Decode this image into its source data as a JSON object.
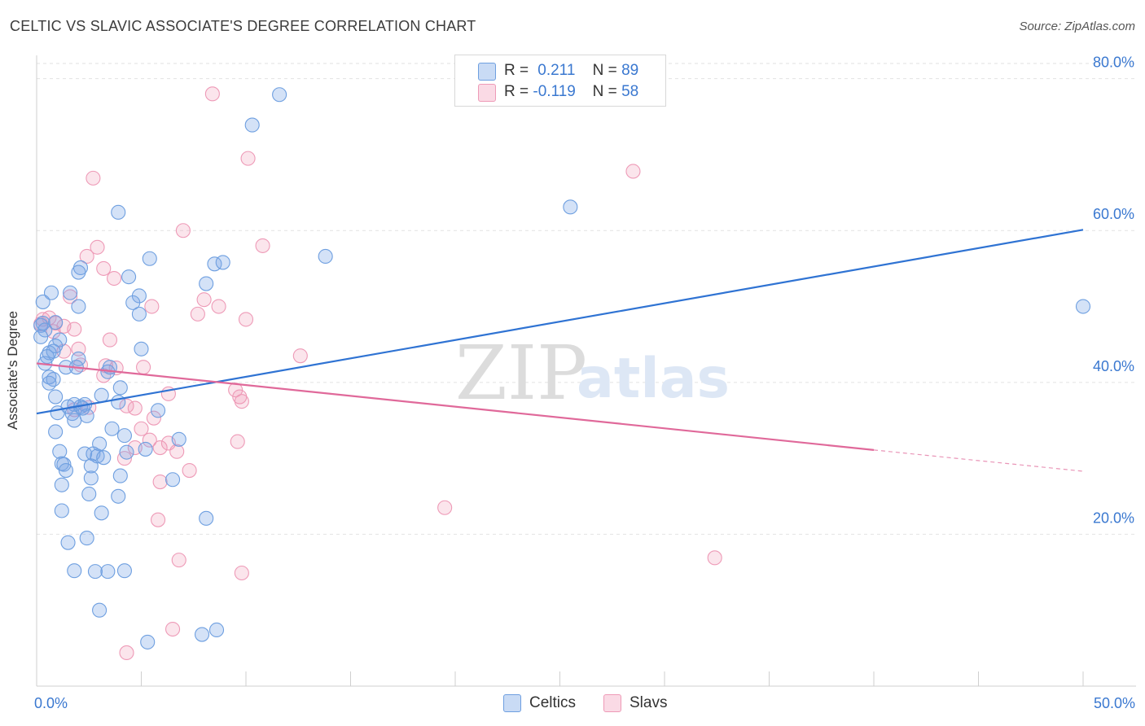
{
  "title": "CELTIC VS SLAVIC ASSOCIATE'S DEGREE CORRELATION CHART",
  "source": "Source: ZipAtlas.com",
  "watermark": {
    "zip": "ZIP",
    "atlas": "atlas"
  },
  "colors": {
    "celtic_fill": "rgba(120,165,230,0.32)",
    "celtic_stroke": "#6e9fe0",
    "celtic_line": "#2f73d3",
    "slav_fill": "rgba(240,150,180,0.25)",
    "slav_stroke": "#ee9ab7",
    "slav_line": "#e0699a",
    "axis_label": "#3a78d0",
    "grid": "#e2e2e2"
  },
  "legend": {
    "celtic": {
      "r_label": "R =",
      "r_value": "0.211",
      "n_label": "N =",
      "n_value": "89"
    },
    "slav": {
      "r_label": "R =",
      "r_value": "-0.119",
      "n_label": "N =",
      "n_value": "58"
    }
  },
  "bottom_legend": {
    "celtic": "Celtics",
    "slav": "Slavs"
  },
  "chart_data": {
    "type": "scatter",
    "title": "CELTIC VS SLAVIC ASSOCIATE'S DEGREE CORRELATION CHART",
    "xlabel": "",
    "ylabel": "Associate's Degree",
    "xlim": [
      0,
      50
    ],
    "ylim": [
      0,
      82
    ],
    "x_tick_labels": [
      "0.0%",
      "50.0%"
    ],
    "y_ticks": [
      20,
      40,
      60,
      80
    ],
    "y_tick_labels": [
      "20.0%",
      "40.0%",
      "60.0%",
      "80.0%"
    ],
    "grid": true,
    "series": [
      {
        "name": "Celtics",
        "trend": {
          "x0": 0,
          "y0": 35.9,
          "x1": 50,
          "y1": 60.1
        },
        "points": [
          [
            11.6,
            77.9
          ],
          [
            10.3,
            73.9
          ],
          [
            25.5,
            63.1
          ],
          [
            3.9,
            62.4
          ],
          [
            13.8,
            56.6
          ],
          [
            5.4,
            56.3
          ],
          [
            8.5,
            55.6
          ],
          [
            8.9,
            55.8
          ],
          [
            2.1,
            55.1
          ],
          [
            2.0,
            54.5
          ],
          [
            4.4,
            53.9
          ],
          [
            8.1,
            53.0
          ],
          [
            1.6,
            51.8
          ],
          [
            4.9,
            51.4
          ],
          [
            0.3,
            50.6
          ],
          [
            4.6,
            50.5
          ],
          [
            2.0,
            50.0
          ],
          [
            50.0,
            50.0
          ],
          [
            4.9,
            49.0
          ],
          [
            0.3,
            47.8
          ],
          [
            0.2,
            47.5
          ],
          [
            0.9,
            47.9
          ],
          [
            0.4,
            46.9
          ],
          [
            0.2,
            46.0
          ],
          [
            1.1,
            45.6
          ],
          [
            0.9,
            44.8
          ],
          [
            5.0,
            44.4
          ],
          [
            0.6,
            43.9
          ],
          [
            0.8,
            44.1
          ],
          [
            0.5,
            43.4
          ],
          [
            2.0,
            43.1
          ],
          [
            0.4,
            42.5
          ],
          [
            1.4,
            42.0
          ],
          [
            1.9,
            42.0
          ],
          [
            3.5,
            42.0
          ],
          [
            3.4,
            41.4
          ],
          [
            0.6,
            40.7
          ],
          [
            0.8,
            40.4
          ],
          [
            0.6,
            39.9
          ],
          [
            4.0,
            39.3
          ],
          [
            3.1,
            38.3
          ],
          [
            0.9,
            38.1
          ],
          [
            1.5,
            36.8
          ],
          [
            1.8,
            37.1
          ],
          [
            2.3,
            37.1
          ],
          [
            2.1,
            36.8
          ],
          [
            1.7,
            35.9
          ],
          [
            2.4,
            35.6
          ],
          [
            1.8,
            35.0
          ],
          [
            0.9,
            33.5
          ],
          [
            6.8,
            32.5
          ],
          [
            3.0,
            31.9
          ],
          [
            1.1,
            30.9
          ],
          [
            2.3,
            30.6
          ],
          [
            2.7,
            30.6
          ],
          [
            5.2,
            31.2
          ],
          [
            4.3,
            30.8
          ],
          [
            2.9,
            30.3
          ],
          [
            3.2,
            30.1
          ],
          [
            1.2,
            29.3
          ],
          [
            1.3,
            29.2
          ],
          [
            2.6,
            29.0
          ],
          [
            1.4,
            28.4
          ],
          [
            4.0,
            27.7
          ],
          [
            2.6,
            27.4
          ],
          [
            6.5,
            27.2
          ],
          [
            1.2,
            26.5
          ],
          [
            2.5,
            25.3
          ],
          [
            3.9,
            25.0
          ],
          [
            3.1,
            22.8
          ],
          [
            1.2,
            23.1
          ],
          [
            8.1,
            22.1
          ],
          [
            2.4,
            19.5
          ],
          [
            1.5,
            18.9
          ],
          [
            1.8,
            15.2
          ],
          [
            2.8,
            15.1
          ],
          [
            3.4,
            15.1
          ],
          [
            4.2,
            15.2
          ],
          [
            3.0,
            10.0
          ],
          [
            5.3,
            5.8
          ],
          [
            7.9,
            6.8
          ],
          [
            8.6,
            7.4
          ],
          [
            0.7,
            51.8
          ],
          [
            1.0,
            36.0
          ],
          [
            2.2,
            36.6
          ],
          [
            3.9,
            37.4
          ],
          [
            5.8,
            36.3
          ],
          [
            4.2,
            33.0
          ],
          [
            3.6,
            33.9
          ]
        ]
      },
      {
        "name": "Slavs",
        "trend": {
          "x0": 0,
          "y0": 42.5,
          "x1": 40,
          "y1": 31.1,
          "dash_to_x": 50,
          "dash_to_y": 28.3
        },
        "points": [
          [
            8.4,
            78.0
          ],
          [
            10.1,
            69.5
          ],
          [
            28.5,
            67.8
          ],
          [
            2.7,
            66.9
          ],
          [
            7.0,
            60.0
          ],
          [
            10.8,
            58.0
          ],
          [
            2.9,
            57.8
          ],
          [
            2.4,
            56.6
          ],
          [
            3.2,
            55.0
          ],
          [
            3.7,
            53.7
          ],
          [
            1.6,
            51.3
          ],
          [
            8.0,
            50.9
          ],
          [
            5.5,
            50.0
          ],
          [
            8.7,
            50.0
          ],
          [
            7.7,
            49.0
          ],
          [
            10.0,
            48.3
          ],
          [
            0.3,
            48.3
          ],
          [
            0.6,
            48.5
          ],
          [
            0.2,
            47.7
          ],
          [
            0.9,
            47.8
          ],
          [
            1.3,
            47.4
          ],
          [
            1.8,
            47.0
          ],
          [
            0.8,
            46.7
          ],
          [
            3.5,
            45.6
          ],
          [
            2.0,
            44.4
          ],
          [
            1.3,
            44.1
          ],
          [
            12.6,
            43.5
          ],
          [
            2.1,
            42.3
          ],
          [
            3.3,
            42.2
          ],
          [
            3.8,
            41.9
          ],
          [
            5.1,
            42.0
          ],
          [
            3.2,
            40.9
          ],
          [
            9.5,
            39.0
          ],
          [
            6.3,
            38.5
          ],
          [
            9.7,
            38.1
          ],
          [
            9.8,
            37.5
          ],
          [
            2.5,
            36.7
          ],
          [
            4.3,
            36.9
          ],
          [
            4.7,
            36.6
          ],
          [
            5.6,
            35.3
          ],
          [
            1.8,
            36.4
          ],
          [
            5.0,
            33.9
          ],
          [
            5.4,
            32.4
          ],
          [
            9.6,
            32.2
          ],
          [
            6.3,
            32.0
          ],
          [
            5.9,
            31.4
          ],
          [
            4.7,
            31.4
          ],
          [
            6.7,
            30.9
          ],
          [
            4.2,
            30.0
          ],
          [
            7.3,
            28.4
          ],
          [
            5.9,
            26.9
          ],
          [
            19.5,
            23.5
          ],
          [
            5.8,
            21.9
          ],
          [
            32.4,
            16.9
          ],
          [
            6.8,
            16.6
          ],
          [
            9.8,
            14.9
          ],
          [
            6.5,
            7.5
          ],
          [
            4.3,
            4.4
          ]
        ]
      }
    ]
  }
}
